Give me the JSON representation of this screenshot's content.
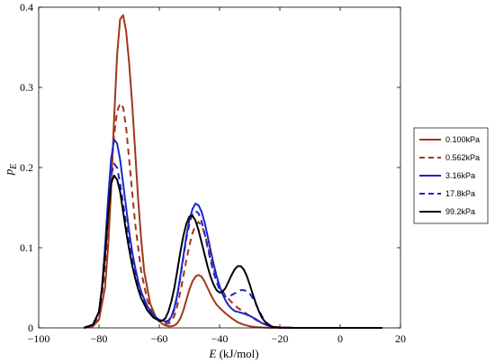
{
  "chart_data": {
    "type": "line",
    "title": "",
    "xlabel_var": "E",
    "xlabel_unit": " (kJ/mol)",
    "ylabel_var": "p",
    "ylabel_sub": "E",
    "xlim": [
      -100,
      20
    ],
    "ylim": [
      0,
      0.4
    ],
    "xticks": [
      -100,
      -80,
      -60,
      -40,
      -20,
      0,
      20
    ],
    "yticks": [
      0,
      0.1,
      0.2,
      0.3,
      0.4
    ],
    "xtick_labels": [
      "−100",
      "−80",
      "−60",
      "−40",
      "−20",
      "0",
      "20"
    ],
    "ytick_labels": [
      "0",
      "0.1",
      "0.2",
      "0.3",
      "0.4"
    ],
    "grid": false,
    "legend_position": "right",
    "series": [
      {
        "name": "0.100kPa",
        "color": "#a0361c",
        "dash": "solid",
        "x": [
          -85,
          -82,
          -80,
          -78,
          -77,
          -76,
          -75,
          -74,
          -73,
          -72,
          -71,
          -70,
          -69,
          -68,
          -67,
          -66,
          -65,
          -63,
          -61,
          -59,
          -58,
          -57,
          -56,
          -55,
          -54,
          -53,
          -52,
          -51,
          -50,
          -49,
          -48,
          -47,
          -46,
          -45,
          -44,
          -43,
          -42,
          -41,
          -40,
          -38,
          -36,
          -34,
          -32,
          -30,
          -28,
          -26,
          -24,
          -20,
          -15,
          0,
          14
        ],
        "y": [
          0,
          0.002,
          0.01,
          0.05,
          0.1,
          0.17,
          0.26,
          0.34,
          0.385,
          0.39,
          0.37,
          0.33,
          0.28,
          0.22,
          0.16,
          0.11,
          0.07,
          0.03,
          0.012,
          0.005,
          0.003,
          0.002,
          0.002,
          0.003,
          0.006,
          0.012,
          0.022,
          0.035,
          0.048,
          0.058,
          0.064,
          0.066,
          0.064,
          0.058,
          0.05,
          0.042,
          0.035,
          0.029,
          0.025,
          0.018,
          0.012,
          0.007,
          0.004,
          0.002,
          0.001,
          0.0005,
          0.0002,
          0,
          0,
          0,
          0
        ]
      },
      {
        "name": "0.562kPa",
        "color": "#a0361c",
        "dash": "dashed",
        "x": [
          -85,
          -82,
          -80,
          -78,
          -77,
          -76,
          -75,
          -74,
          -73,
          -72,
          -71,
          -70,
          -69,
          -68,
          -66,
          -64,
          -62,
          -60,
          -58,
          -57,
          -56,
          -55,
          -54,
          -53,
          -52,
          -51,
          -50,
          -49,
          -48,
          -47,
          -46,
          -45,
          -44,
          -43,
          -42,
          -41,
          -40,
          -38,
          -36,
          -34,
          -32,
          -30,
          -28,
          -26,
          -24,
          -22,
          -20,
          -15,
          0,
          14
        ],
        "y": [
          0,
          0.003,
          0.015,
          0.07,
          0.13,
          0.19,
          0.24,
          0.27,
          0.28,
          0.275,
          0.25,
          0.21,
          0.17,
          0.13,
          0.07,
          0.035,
          0.016,
          0.008,
          0.005,
          0.005,
          0.008,
          0.015,
          0.028,
          0.045,
          0.065,
          0.085,
          0.103,
          0.118,
          0.128,
          0.132,
          0.128,
          0.118,
          0.103,
          0.088,
          0.074,
          0.062,
          0.052,
          0.04,
          0.032,
          0.025,
          0.02,
          0.015,
          0.01,
          0.006,
          0.003,
          0.001,
          0.0005,
          0,
          0,
          0
        ]
      },
      {
        "name": "3.16kPa",
        "color": "#1c26c8",
        "dash": "solid",
        "x": [
          -85,
          -82,
          -80,
          -79,
          -78,
          -77,
          -76,
          -75,
          -74,
          -73,
          -72,
          -71,
          -70,
          -69,
          -68,
          -67,
          -66,
          -64,
          -62,
          -60,
          -58,
          -57,
          -56,
          -55,
          -54,
          -53,
          -52,
          -51,
          -50,
          -49,
          -48,
          -47,
          -46,
          -45,
          -44,
          -43,
          -42,
          -41,
          -40,
          -39,
          -38,
          -37,
          -36,
          -35,
          -34,
          -33,
          -32,
          -30,
          -28,
          -26,
          -24,
          -22,
          -20,
          -15,
          0,
          14
        ],
        "y": [
          0,
          0.004,
          0.02,
          0.05,
          0.1,
          0.16,
          0.21,
          0.235,
          0.23,
          0.21,
          0.18,
          0.15,
          0.12,
          0.095,
          0.075,
          0.058,
          0.045,
          0.027,
          0.016,
          0.01,
          0.008,
          0.009,
          0.014,
          0.025,
          0.042,
          0.065,
          0.09,
          0.115,
          0.135,
          0.148,
          0.155,
          0.153,
          0.145,
          0.132,
          0.115,
          0.097,
          0.08,
          0.065,
          0.052,
          0.042,
          0.034,
          0.028,
          0.024,
          0.021,
          0.02,
          0.019,
          0.018,
          0.015,
          0.011,
          0.006,
          0.003,
          0.001,
          0.0005,
          0,
          0,
          0
        ]
      },
      {
        "name": "17.8kPa",
        "color": "#1c26c8",
        "dash": "dashed",
        "x": [
          -85,
          -82,
          -80,
          -79,
          -78,
          -77,
          -76,
          -75,
          -74,
          -73,
          -72,
          -71,
          -70,
          -69,
          -68,
          -67,
          -66,
          -64,
          -62,
          -60,
          -58,
          -57,
          -56,
          -55,
          -54,
          -53,
          -52,
          -51,
          -50,
          -49,
          -48,
          -47,
          -46,
          -45,
          -44,
          -43,
          -42,
          -41,
          -40,
          -39,
          -38,
          -37,
          -36,
          -35,
          -34,
          -33,
          -32,
          -31,
          -30,
          -29,
          -28,
          -27,
          -26,
          -25,
          -24,
          -22,
          -20,
          -15,
          0,
          14
        ],
        "y": [
          0,
          0.004,
          0.02,
          0.05,
          0.1,
          0.15,
          0.19,
          0.205,
          0.2,
          0.18,
          0.155,
          0.13,
          0.105,
          0.085,
          0.068,
          0.053,
          0.042,
          0.025,
          0.015,
          0.009,
          0.007,
          0.008,
          0.013,
          0.023,
          0.04,
          0.063,
          0.088,
          0.112,
          0.13,
          0.142,
          0.146,
          0.143,
          0.133,
          0.118,
          0.101,
          0.084,
          0.069,
          0.057,
          0.048,
          0.042,
          0.039,
          0.039,
          0.041,
          0.043,
          0.045,
          0.047,
          0.047,
          0.046,
          0.043,
          0.037,
          0.03,
          0.022,
          0.015,
          0.009,
          0.005,
          0.001,
          0.0005,
          0,
          0,
          0
        ]
      },
      {
        "name": "99.2kPa",
        "color": "#000000",
        "dash": "solid",
        "x": [
          -85,
          -82,
          -80,
          -79,
          -78,
          -77,
          -76,
          -75,
          -74,
          -73,
          -72,
          -71,
          -70,
          -69,
          -68,
          -67,
          -66,
          -64,
          -62,
          -60,
          -59,
          -58,
          -57,
          -56,
          -55,
          -54,
          -53,
          -52,
          -51,
          -50,
          -49,
          -48,
          -47,
          -46,
          -45,
          -44,
          -43,
          -42,
          -41,
          -40,
          -39,
          -38,
          -37,
          -36,
          -35,
          -34,
          -33,
          -32,
          -31,
          -30,
          -29,
          -28,
          -27,
          -26,
          -25,
          -24,
          -23,
          -22,
          -20,
          -15,
          0,
          14
        ],
        "y": [
          0,
          0.004,
          0.02,
          0.05,
          0.09,
          0.14,
          0.18,
          0.19,
          0.185,
          0.17,
          0.145,
          0.12,
          0.098,
          0.078,
          0.062,
          0.048,
          0.037,
          0.022,
          0.013,
          0.009,
          0.009,
          0.012,
          0.02,
          0.033,
          0.05,
          0.072,
          0.095,
          0.115,
          0.13,
          0.139,
          0.14,
          0.134,
          0.122,
          0.107,
          0.092,
          0.077,
          0.064,
          0.054,
          0.047,
          0.044,
          0.045,
          0.05,
          0.058,
          0.066,
          0.073,
          0.077,
          0.077,
          0.073,
          0.065,
          0.054,
          0.042,
          0.031,
          0.021,
          0.013,
          0.008,
          0.004,
          0.002,
          0.001,
          0.0003,
          0,
          0,
          0
        ]
      }
    ]
  }
}
